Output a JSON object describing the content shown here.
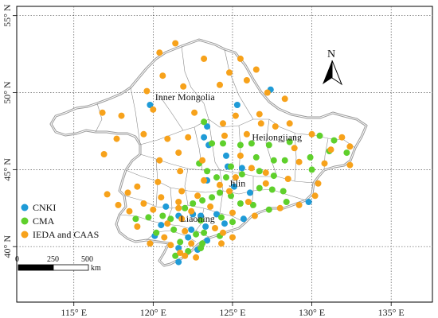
{
  "map": {
    "latitudes": [
      {
        "label": "55° N",
        "value": 55
      },
      {
        "label": "50° N",
        "value": 50
      },
      {
        "label": "45° N",
        "value": 45
      },
      {
        "label": "40° N",
        "value": 40
      }
    ],
    "longitudes": [
      {
        "label": "115° E",
        "value": 115
      },
      {
        "label": "120° E",
        "value": 120
      },
      {
        "label": "125° E",
        "value": 125
      },
      {
        "label": "130° E",
        "value": 130
      },
      {
        "label": "135° E",
        "value": 135
      }
    ],
    "north_label": "N",
    "regions": [
      {
        "id": "inner-mongolia",
        "label": "Inner Mongolia",
        "lon": 122.0,
        "lat": 49.5
      },
      {
        "id": "heilongjiang",
        "label": "Heilongjiang",
        "lon": 127.8,
        "lat": 46.9
      },
      {
        "id": "jilin",
        "label": "Jilin",
        "lon": 125.3,
        "lat": 43.9
      },
      {
        "id": "liaoning",
        "label": "Liaoning",
        "lon": 122.8,
        "lat": 41.6
      }
    ],
    "legend": [
      {
        "label": "CNKI",
        "color": "#1f9bd7"
      },
      {
        "label": "CMA",
        "color": "#5fd02c"
      },
      {
        "label": "IEDA and CAAS",
        "color": "#f7a21b"
      }
    ],
    "scale": {
      "labels": [
        "0",
        "250",
        "500"
      ],
      "unit": "km"
    },
    "colors": {
      "border": "#8c8c8c",
      "grid": "#555555"
    }
  },
  "chart_data": {
    "type": "scatter",
    "title": "",
    "xlabel": "",
    "ylabel": "",
    "xlim": [
      111.5,
      137.5
    ],
    "ylim": [
      36.5,
      55.5
    ],
    "series": [
      {
        "name": "CNKI",
        "color": "#1f9bd7",
        "points": [
          [
            119.8,
            49.2
          ],
          [
            125.3,
            49.2
          ],
          [
            127.4,
            50.2
          ],
          [
            123.4,
            47.8
          ],
          [
            123.2,
            47.1
          ],
          [
            123.5,
            46.6
          ],
          [
            124.6,
            45.9
          ],
          [
            124.7,
            45.2
          ],
          [
            125.6,
            45.1
          ],
          [
            123.4,
            44.3
          ],
          [
            125.1,
            43.9
          ],
          [
            126.1,
            43.5
          ],
          [
            129.8,
            42.9
          ],
          [
            120.8,
            42.6
          ],
          [
            121.6,
            42.0
          ],
          [
            122.5,
            42.1
          ],
          [
            123.0,
            42.0
          ],
          [
            124.0,
            42.1
          ],
          [
            125.7,
            41.8
          ],
          [
            120.5,
            41.4
          ],
          [
            122.4,
            41.1
          ],
          [
            123.3,
            41.3
          ],
          [
            124.5,
            41.5
          ],
          [
            120.1,
            40.7
          ],
          [
            122.2,
            40.6
          ],
          [
            123.4,
            40.4
          ],
          [
            121.6,
            39.9
          ],
          [
            122.8,
            39.8
          ],
          [
            121.6,
            39.0
          ]
        ]
      },
      {
        "name": "CMA",
        "color": "#5fd02c",
        "points": [
          [
            123.2,
            48.1
          ],
          [
            123.7,
            46.7
          ],
          [
            124.4,
            46.7
          ],
          [
            125.5,
            46.6
          ],
          [
            126.2,
            46.7
          ],
          [
            127.3,
            46.6
          ],
          [
            128.6,
            46.8
          ],
          [
            130.5,
            47.2
          ],
          [
            131.4,
            46.9
          ],
          [
            126.5,
            45.8
          ],
          [
            127.6,
            45.6
          ],
          [
            128.3,
            45.6
          ],
          [
            129.9,
            45.8
          ],
          [
            131.1,
            46.2
          ],
          [
            132.2,
            46.1
          ],
          [
            122.9,
            45.4
          ],
          [
            124.9,
            45.2
          ],
          [
            125.6,
            44.7
          ],
          [
            126.7,
            44.9
          ],
          [
            127.6,
            44.6
          ],
          [
            130.0,
            45.0
          ],
          [
            123.4,
            44.9
          ],
          [
            124.0,
            44.5
          ],
          [
            124.6,
            44.5
          ],
          [
            126.7,
            43.8
          ],
          [
            127.5,
            43.7
          ],
          [
            128.2,
            43.6
          ],
          [
            124.2,
            43.5
          ],
          [
            124.9,
            43.3
          ],
          [
            125.5,
            42.8
          ],
          [
            126.3,
            42.7
          ],
          [
            127.3,
            42.4
          ],
          [
            128.4,
            42.9
          ],
          [
            123.1,
            43.0
          ],
          [
            123.7,
            43.2
          ],
          [
            122.0,
            42.5
          ],
          [
            122.5,
            42.8
          ],
          [
            121.1,
            41.8
          ],
          [
            123.0,
            41.7
          ],
          [
            124.3,
            41.9
          ],
          [
            125.0,
            41.6
          ],
          [
            119.7,
            41.9
          ],
          [
            120.6,
            42.0
          ],
          [
            121.3,
            41.1
          ],
          [
            122.7,
            40.8
          ],
          [
            123.2,
            40.9
          ],
          [
            121.7,
            40.3
          ],
          [
            124.2,
            40.7
          ],
          [
            123.1,
            40.2
          ],
          [
            122.2,
            39.7
          ],
          [
            121.4,
            39.4
          ],
          [
            118.9,
            41.8
          ],
          [
            120.2,
            40.9
          ],
          [
            123.0,
            39.9
          ]
        ]
      },
      {
        "name": "IEDA and CAAS",
        "color": "#f7a21b",
        "points": [
          [
            121.4,
            53.2
          ],
          [
            120.4,
            52.6
          ],
          [
            123.2,
            52.2
          ],
          [
            125.5,
            52.2
          ],
          [
            124.8,
            51.3
          ],
          [
            126.5,
            51.5
          ],
          [
            120.6,
            51.1
          ],
          [
            124.2,
            50.5
          ],
          [
            125.9,
            50.8
          ],
          [
            119.6,
            50.1
          ],
          [
            121.9,
            50.4
          ],
          [
            120.0,
            48.9
          ],
          [
            127.2,
            50.0
          ],
          [
            128.3,
            49.6
          ],
          [
            118.0,
            48.5
          ],
          [
            125.2,
            48.5
          ],
          [
            126.7,
            48.6
          ],
          [
            116.8,
            48.7
          ],
          [
            122.6,
            48.7
          ],
          [
            124.4,
            48.0
          ],
          [
            126.8,
            48.0
          ],
          [
            128.6,
            48.0
          ],
          [
            127.7,
            47.8
          ],
          [
            130.0,
            47.3
          ],
          [
            131.9,
            47.1
          ],
          [
            117.7,
            47.0
          ],
          [
            119.4,
            47.3
          ],
          [
            120.9,
            47.0
          ],
          [
            122.2,
            47.1
          ],
          [
            124.5,
            47.2
          ],
          [
            125.9,
            47.3
          ],
          [
            132.4,
            46.5
          ],
          [
            131.2,
            46.3
          ],
          [
            128.9,
            46.4
          ],
          [
            130.8,
            45.4
          ],
          [
            129.2,
            45.5
          ],
          [
            116.9,
            46.0
          ],
          [
            120.4,
            45.6
          ],
          [
            121.6,
            46.1
          ],
          [
            123.1,
            45.6
          ],
          [
            125.5,
            45.9
          ],
          [
            126.2,
            45.1
          ],
          [
            132.4,
            45.3
          ],
          [
            127.1,
            44.8
          ],
          [
            121.7,
            44.9
          ],
          [
            123.2,
            44.3
          ],
          [
            124.2,
            44.0
          ],
          [
            125.2,
            44.5
          ],
          [
            127.1,
            44.1
          ],
          [
            128.5,
            44.4
          ],
          [
            130.4,
            44.1
          ],
          [
            119.0,
            43.9
          ],
          [
            120.3,
            44.2
          ],
          [
            121.8,
            43.6
          ],
          [
            122.8,
            43.3
          ],
          [
            124.8,
            43.6
          ],
          [
            126.0,
            42.9
          ],
          [
            128.0,
            42.5
          ],
          [
            129.2,
            42.7
          ],
          [
            130.2,
            43.3
          ],
          [
            117.1,
            43.4
          ],
          [
            118.4,
            43.5
          ],
          [
            120.5,
            43.2
          ],
          [
            119.4,
            42.8
          ],
          [
            121.6,
            42.9
          ],
          [
            123.6,
            42.6
          ],
          [
            125.0,
            42.2
          ],
          [
            126.4,
            42.0
          ],
          [
            117.8,
            42.7
          ],
          [
            118.5,
            42.3
          ],
          [
            120.0,
            42.4
          ],
          [
            121.6,
            42.5
          ],
          [
            122.4,
            42.3
          ],
          [
            119.0,
            41.3
          ],
          [
            120.9,
            41.5
          ],
          [
            121.8,
            41.8
          ],
          [
            123.9,
            41.2
          ],
          [
            124.4,
            40.9
          ],
          [
            125.0,
            40.6
          ],
          [
            122.0,
            41.0
          ],
          [
            120.7,
            40.6
          ],
          [
            121.1,
            40.1
          ],
          [
            122.4,
            40.2
          ],
          [
            124.3,
            40.2
          ],
          [
            122.0,
            39.4
          ],
          [
            122.7,
            39.3
          ],
          [
            121.7,
            39.6
          ],
          [
            119.8,
            40.2
          ]
        ]
      }
    ]
  }
}
